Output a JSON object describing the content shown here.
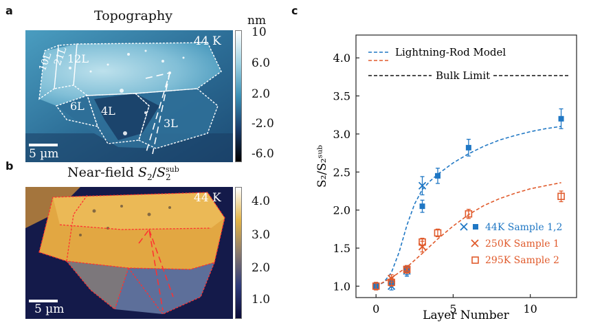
{
  "panel_a": {
    "letter": "a",
    "title": "Topography",
    "temperature": "44 K",
    "scale_bar": "5 µm",
    "layer_labels": [
      "10L",
      "21L",
      "12L",
      "6L",
      "4L",
      "3L"
    ],
    "colorbar": {
      "unit": "nm",
      "ticks": [
        "10",
        "6.0",
        "2.0",
        "-2.0",
        "-6.0"
      ],
      "colors": [
        "#000000",
        "#1a3d6b",
        "#3a8fb5",
        "#9fd3e4",
        "#ffffff"
      ]
    }
  },
  "panel_b": {
    "letter": "b",
    "title_prefix": "Near-field  ",
    "title_math": "S",
    "title_sub": "2",
    "title_sup": "sub",
    "temperature": "44 K",
    "scale_bar": "5 µm",
    "colorbar": {
      "ticks": [
        "4.0",
        "3.0",
        "2.0",
        "1.0"
      ],
      "colors": [
        "#0b0c38",
        "#2f3b7a",
        "#8a7a6e",
        "#e3b347",
        "#ffffff"
      ]
    }
  },
  "chart_data": {
    "type": "scatter",
    "panel_letter": "c",
    "xlabel": "Layer Number",
    "ylabel": "S₂/S₂ˢᵘᵇ",
    "xlim": [
      -1.3,
      13
    ],
    "ylim": [
      0.85,
      4.3
    ],
    "xticks": [
      "0",
      "5",
      "10"
    ],
    "xtick_values": [
      0,
      5,
      10
    ],
    "yticks": [
      "1.0",
      "1.5",
      "2.0",
      "2.5",
      "3.0",
      "3.5",
      "4.0"
    ],
    "ytick_values": [
      1.0,
      1.5,
      2.0,
      2.5,
      3.0,
      3.5,
      4.0
    ],
    "model_curves": [
      {
        "name": "Lightning-Rod Model",
        "color": "#1f77c4",
        "x": [
          0,
          0.5,
          1,
          1.5,
          2,
          2.5,
          3,
          3.5,
          4,
          5,
          6,
          7,
          8,
          9,
          10,
          11,
          12
        ],
        "y": [
          1.0,
          1.05,
          1.18,
          1.45,
          1.8,
          2.08,
          2.27,
          2.38,
          2.47,
          2.62,
          2.74,
          2.84,
          2.92,
          2.98,
          3.03,
          3.07,
          3.1
        ]
      },
      {
        "name": "",
        "color": "#e05a2b",
        "x": [
          0,
          1,
          2,
          3,
          4,
          5,
          6,
          7,
          8,
          9,
          10,
          11,
          12
        ],
        "y": [
          1.0,
          1.11,
          1.25,
          1.43,
          1.62,
          1.79,
          1.94,
          2.06,
          2.15,
          2.22,
          2.28,
          2.32,
          2.36
        ]
      }
    ],
    "bulk_limit": {
      "label": "Bulk Limit",
      "y": 3.7
    },
    "series": [
      {
        "name": "44K Sample 1",
        "marker": "x",
        "color": "#1f77c4",
        "points": [
          {
            "x": 1,
            "y": 1.0,
            "err": 0.05
          },
          {
            "x": 2,
            "y": 1.2,
            "err": 0.07
          },
          {
            "x": 3,
            "y": 2.32,
            "err": 0.12
          }
        ]
      },
      {
        "name": "44K Sample 2",
        "marker": "filled-square",
        "color": "#1f77c4",
        "points": [
          {
            "x": 0,
            "y": 1.0,
            "err": 0.05
          },
          {
            "x": 1,
            "y": 1.05,
            "err": 0.05
          },
          {
            "x": 2,
            "y": 1.2,
            "err": 0.05
          },
          {
            "x": 3,
            "y": 2.05,
            "err": 0.08
          },
          {
            "x": 4,
            "y": 2.45,
            "err": 0.1
          },
          {
            "x": 6,
            "y": 2.82,
            "err": 0.11
          },
          {
            "x": 12,
            "y": 3.2,
            "err": 0.13
          }
        ]
      },
      {
        "name": "250K Sample 1",
        "marker": "x",
        "color": "#e05a2b",
        "points": [
          {
            "x": 1,
            "y": 1.1,
            "err": 0.05
          },
          {
            "x": 2,
            "y": 1.22,
            "err": 0.05
          },
          {
            "x": 3,
            "y": 1.52,
            "err": 0.07
          }
        ]
      },
      {
        "name": "295K Sample 2",
        "marker": "open-square",
        "color": "#e05a2b",
        "points": [
          {
            "x": 0,
            "y": 1.0,
            "err": 0.05
          },
          {
            "x": 1,
            "y": 1.05,
            "err": 0.05
          },
          {
            "x": 2,
            "y": 1.22,
            "err": 0.05
          },
          {
            "x": 3,
            "y": 1.58,
            "err": 0.05
          },
          {
            "x": 4,
            "y": 1.7,
            "err": 0.05
          },
          {
            "x": 6,
            "y": 1.95,
            "err": 0.06
          },
          {
            "x": 12,
            "y": 2.18,
            "err": 0.07
          }
        ]
      }
    ],
    "legend_top": [
      "Lightning-Rod Model",
      "Bulk Limit"
    ],
    "legend_bottom": [
      "44K Sample 1,2",
      "250K Sample 1",
      "295K Sample 2"
    ]
  }
}
